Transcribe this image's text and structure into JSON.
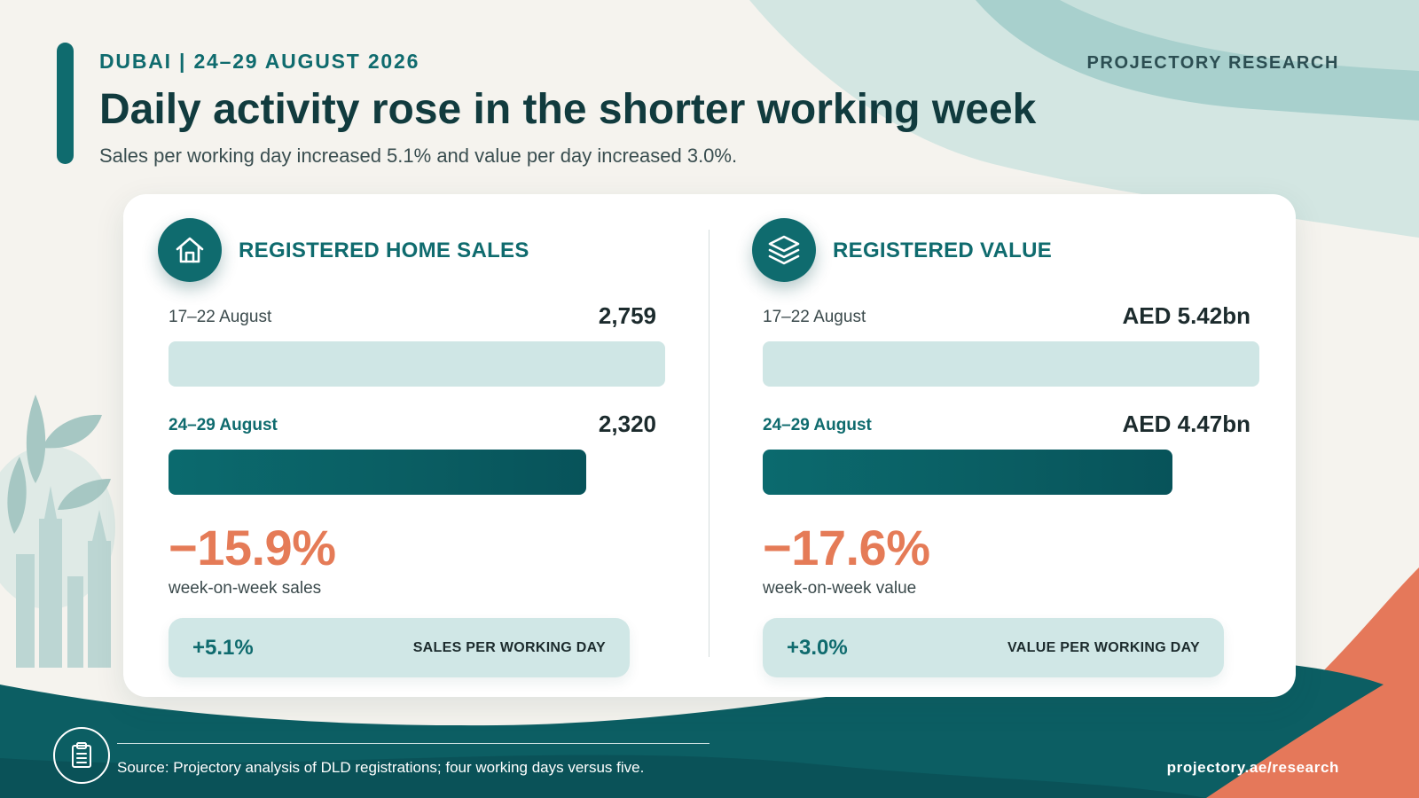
{
  "header": {
    "eyebrow": "DUBAI | 24–29 AUGUST 2026",
    "brand": "PROJECTORY RESEARCH",
    "title": "Daily activity rose in the shorter working week",
    "subtitle": "Sales per working day increased 5.1% and value per day increased 3.0%."
  },
  "colors": {
    "primary": "#0f6b6e",
    "dark_teal": "#0a5258",
    "light_teal": "#cfe6e5",
    "negative": "#e57b57",
    "background": "#f5f3ee"
  },
  "panels": [
    {
      "icon": "house-icon",
      "title": "REGISTERED HOME SALES",
      "rows": [
        {
          "label": "17–22 August",
          "value_text": "2,759"
        },
        {
          "label": "24–29 August",
          "value_text": "2,320"
        }
      ],
      "change": "−15.9%",
      "change_label": "week-on-week sales",
      "per_day_value": "+5.1%",
      "per_day_label": "SALES PER WORKING DAY"
    },
    {
      "icon": "layers-icon",
      "title": "REGISTERED VALUE",
      "rows": [
        {
          "label": "17–22 August",
          "value_text": "AED 5.42bn"
        },
        {
          "label": "24–29 August",
          "value_text": "AED 4.47bn"
        }
      ],
      "change": "−17.6%",
      "change_label": "week-on-week value",
      "per_day_value": "+3.0%",
      "per_day_label": "VALUE PER WORKING DAY"
    }
  ],
  "chart_data": [
    {
      "type": "bar",
      "orientation": "horizontal",
      "title": "REGISTERED HOME SALES",
      "categories": [
        "17–22 August",
        "24–29 August"
      ],
      "values": [
        2759,
        2320
      ],
      "xlim": [
        0,
        2759
      ]
    },
    {
      "type": "bar",
      "orientation": "horizontal",
      "title": "REGISTERED VALUE",
      "categories": [
        "17–22 August",
        "24–29 August"
      ],
      "values": [
        5.42,
        4.47
      ],
      "unit": "AED bn",
      "xlim": [
        0,
        5.42
      ]
    }
  ],
  "footer": {
    "icon": "clipboard-icon",
    "source": "Source: Projectory analysis of DLD registrations; four working days versus five.",
    "url": "projectory.ae/research"
  }
}
